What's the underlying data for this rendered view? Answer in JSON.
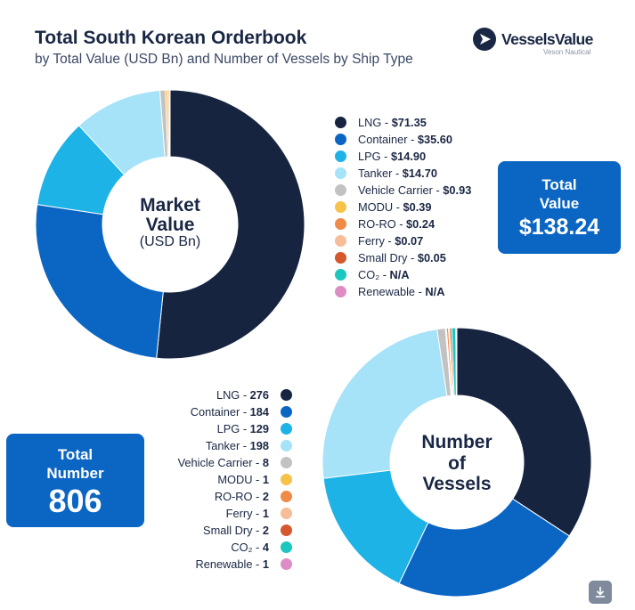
{
  "header": {
    "title": "Total South Korean Orderbook",
    "subtitle": "by Total Value (USD Bn) and Number of Vessels by Ship Type"
  },
  "logo": {
    "name": "VesselsValue",
    "sub": "Veson Nautical"
  },
  "market_value": {
    "center_line1": "Market",
    "center_line2": "Value",
    "center_unit": "(USD Bn)",
    "total_label_1": "Total",
    "total_label_2": "Value",
    "total_value": "$138.24",
    "legend": [
      {
        "label": "LNG",
        "value": "$71.35"
      },
      {
        "label": "Container",
        "value": "$35.60"
      },
      {
        "label": "LPG",
        "value": "$14.90"
      },
      {
        "label": "Tanker",
        "value": "$14.70"
      },
      {
        "label": "Vehicle Carrier",
        "value": "$0.93"
      },
      {
        "label": "MODU",
        "value": "$0.39"
      },
      {
        "label": "RO-RO",
        "value": "$0.24"
      },
      {
        "label": "Ferry",
        "value": "$0.07"
      },
      {
        "label": "Small Dry",
        "value": "$0.05"
      },
      {
        "label": "CO₂",
        "value": "N/A"
      },
      {
        "label": "Renewable",
        "value": "N/A"
      }
    ]
  },
  "vessels": {
    "center_line1": "Number",
    "center_line2": "of",
    "center_line3": "Vessels",
    "total_label_1": "Total",
    "total_label_2": "Number",
    "total_value": "806",
    "legend": [
      {
        "label": "LNG",
        "value": "276"
      },
      {
        "label": "Container",
        "value": "184"
      },
      {
        "label": "LPG",
        "value": "129"
      },
      {
        "label": "Tanker",
        "value": "198"
      },
      {
        "label": "Vehicle Carrier",
        "value": "8"
      },
      {
        "label": "MODU",
        "value": "1"
      },
      {
        "label": "RO-RO",
        "value": "2"
      },
      {
        "label": "Ferry",
        "value": "1"
      },
      {
        "label": "Small Dry",
        "value": "2"
      },
      {
        "label": "CO₂",
        "value": "4"
      },
      {
        "label": "Renewable",
        "value": "1"
      }
    ]
  },
  "colors": {
    "LNG": "#16243f",
    "Container": "#0b66c3",
    "LPG": "#1eb3e6",
    "Tanker": "#a6e2f8",
    "Vehicle Carrier": "#c2c2c2",
    "MODU": "#f7c24a",
    "RO-RO": "#f08a47",
    "Ferry": "#f6bd98",
    "Small Dry": "#d4582c",
    "CO2": "#1cc7c0",
    "Renewable": "#dd8cc5",
    "total_box": "#0b66c3"
  },
  "chart_data": [
    {
      "type": "pie",
      "categories": [
        "LNG",
        "Container",
        "LPG",
        "Tanker",
        "Vehicle Carrier",
        "MODU",
        "RO-RO",
        "Ferry",
        "Small Dry",
        "CO₂",
        "Renewable"
      ],
      "values": [
        71.35,
        35.6,
        14.9,
        14.7,
        0.93,
        0.39,
        0.24,
        0.07,
        0.05,
        0,
        0
      ],
      "title": "Market Value (USD Bn)",
      "total": 138.24,
      "legend_position": "right"
    },
    {
      "type": "pie",
      "categories": [
        "LNG",
        "Container",
        "LPG",
        "Tanker",
        "Vehicle Carrier",
        "MODU",
        "RO-RO",
        "Ferry",
        "Small Dry",
        "CO₂",
        "Renewable"
      ],
      "values": [
        276,
        184,
        129,
        198,
        8,
        1,
        2,
        1,
        2,
        4,
        1
      ],
      "title": "Number of Vessels",
      "total": 806,
      "legend_position": "left"
    }
  ]
}
